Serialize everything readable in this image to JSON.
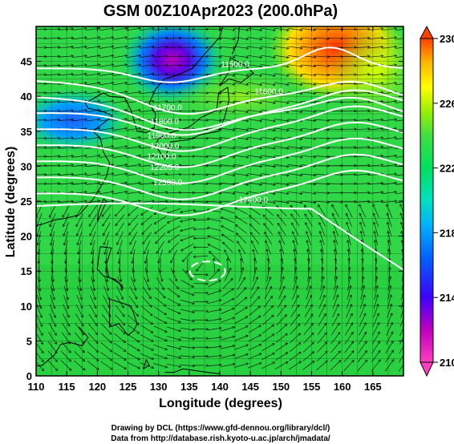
{
  "title": "GSM 00Z10Apr2023 (200.0hPa)",
  "xaxis": {
    "label": "Longitude (degrees)",
    "ticks": [
      "110",
      "115",
      "120",
      "125",
      "130",
      "135",
      "140",
      "145",
      "150",
      "155",
      "160",
      "165"
    ],
    "range": [
      110,
      170
    ]
  },
  "yaxis": {
    "label": "Latitude (degrees)",
    "ticks": [
      "0",
      "5",
      "10",
      "15",
      "20",
      "25",
      "30",
      "35",
      "40",
      "45"
    ],
    "range": [
      0,
      50
    ]
  },
  "colorbar": {
    "ticks": [
      "210",
      "214",
      "218",
      "222",
      "226",
      "230"
    ],
    "range": [
      210,
      230
    ],
    "colors": [
      "#ff3fbf",
      "#c000c0",
      "#4000ff",
      "#00a0ff",
      "#00e0c0",
      "#00e060",
      "#40e040",
      "#a0f000",
      "#ffff00",
      "#ffb000",
      "#ff4000"
    ]
  },
  "contours": {
    "values": [
      11500,
      11600,
      11700,
      11800,
      11900,
      12000,
      12100,
      12200,
      12300,
      12400
    ],
    "labels": [
      {
        "text": "11500.0",
        "lon": 142.5,
        "lat": 44.2
      },
      {
        "text": "11600.0",
        "lon": 148.0,
        "lat": 40.3
      },
      {
        "text": "11700.0",
        "lon": 131.5,
        "lat": 38.0
      },
      {
        "text": "11800.0",
        "lon": 131.0,
        "lat": 36.0
      },
      {
        "text": "11900.0",
        "lon": 130.5,
        "lat": 34.0
      },
      {
        "text": "12000.0",
        "lon": 131.0,
        "lat": 32.5
      },
      {
        "text": "12100.0",
        "lon": 130.5,
        "lat": 31.0
      },
      {
        "text": "12200.0",
        "lon": 131.0,
        "lat": 29.5
      },
      {
        "text": "12300.0",
        "lon": 131.5,
        "lat": 27.3
      },
      {
        "text": "12400.0",
        "lon": 145.5,
        "lat": 24.8
      }
    ]
  },
  "credits": {
    "line1": "Drawing by DCL (https://www.gfd-dennou.org/library/dcl/)",
    "line2": "Data from http://database.rish.kyoto-u.ac.jp/arch/jmadata/"
  }
}
